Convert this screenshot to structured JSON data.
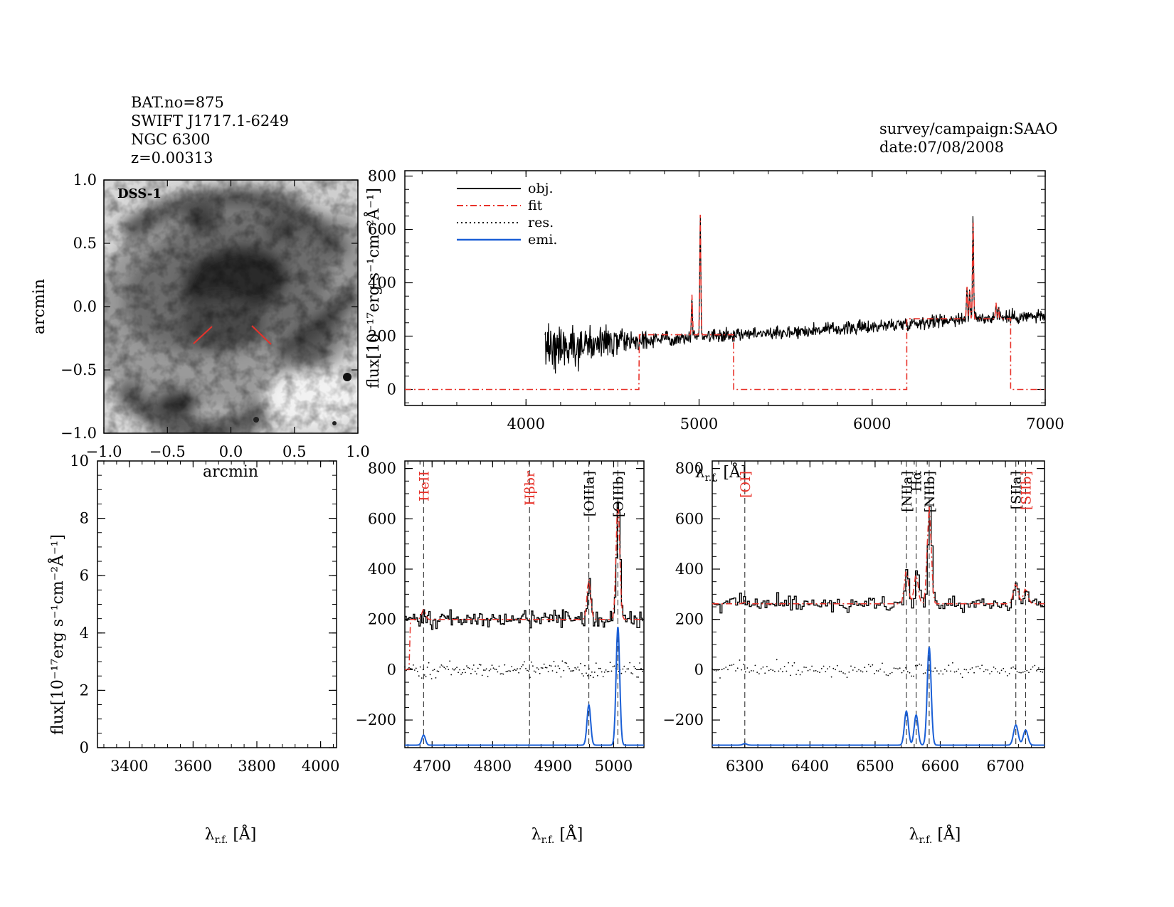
{
  "header": {
    "left_lines": [
      "BAT.no=875",
      "SWIFT J1717.1-6249",
      "NGC 6300",
      "z=0.00313"
    ],
    "right_lines": [
      "survey/campaign:SAAO",
      "date:07/08/2008"
    ]
  },
  "colors": {
    "obj": "#000000",
    "fit": "#e8322a",
    "res": "#000000",
    "emi": "#1a5fd6",
    "slit": "#e8322a"
  },
  "image_panel": {
    "label": "DSS-1",
    "xlabel": "arcmin",
    "ylabel": "arcmin",
    "xlim": [
      -1.0,
      1.0
    ],
    "ylim": [
      -1.0,
      1.0
    ],
    "xticks": [
      "−1.0",
      "−0.5",
      "0.0",
      "0.5",
      "1.0"
    ],
    "yticks": [
      "−1.0",
      "−0.5",
      "0.0",
      "0.5",
      "1.0"
    ]
  },
  "chart_data": [
    {
      "id": "full",
      "type": "line",
      "xlim": [
        3300,
        7000
      ],
      "ylim": [
        -60,
        820
      ],
      "xticks": [
        4000,
        5000,
        6000,
        7000
      ],
      "yticks": [
        0,
        200,
        400,
        600,
        800
      ],
      "xlabel": "λr.f. [Å]",
      "ylabel": "flux[10⁻¹⁷erg s⁻¹cm⁻²Å⁻¹]",
      "legend": {
        "placement": "top-left",
        "entries": [
          "obj.",
          "fit",
          "res.",
          "emi."
        ]
      },
      "obj_range": [
        4110,
        7000
      ],
      "continuum_anchors": [
        [
          4110,
          160
        ],
        [
          4500,
          175
        ],
        [
          5000,
          200
        ],
        [
          5500,
          215
        ],
        [
          6000,
          235
        ],
        [
          6500,
          265
        ],
        [
          7000,
          275
        ]
      ],
      "emission_peaks": [
        [
          4959,
          150
        ],
        [
          5007,
          450
        ],
        [
          6548,
          120
        ],
        [
          6563,
          110
        ],
        [
          6583,
          380
        ],
        [
          6716,
          60
        ],
        [
          6731,
          40
        ]
      ],
      "fit_segments": [
        [
          3300,
          4655,
          0
        ],
        [
          4655,
          5200,
          205
        ],
        [
          5200,
          6200,
          0
        ],
        [
          6200,
          6800,
          265
        ],
        [
          6800,
          7000,
          0
        ]
      ]
    },
    {
      "id": "blank",
      "type": "line",
      "xlim": [
        3300,
        4050
      ],
      "ylim": [
        0,
        10
      ],
      "xticks": [
        3400,
        3600,
        3800,
        4000
      ],
      "yticks": [
        0,
        2,
        4,
        6,
        8,
        10
      ],
      "xlabel": "λr.f. [Å]",
      "ylabel": "flux[10⁻¹⁷erg s⁻¹cm⁻²Å⁻¹]",
      "series": []
    },
    {
      "id": "hbeta",
      "type": "line",
      "xlim": [
        4655,
        5050
      ],
      "ylim": [
        -310,
        830
      ],
      "xticks": [
        4700,
        4800,
        4900,
        5000
      ],
      "yticks": [
        -200,
        0,
        200,
        400,
        600,
        800
      ],
      "xlabel": "λr.f. [Å]",
      "continuum": 200,
      "emission_lines": [
        [
          4686,
          40,
          3
        ],
        [
          4959,
          160,
          3
        ],
        [
          5007,
          470,
          3
        ]
      ],
      "emi_baseline": -300,
      "vlines": [
        {
          "x": 4686,
          "label": "HeII",
          "color": "#e8322a"
        },
        {
          "x": 4861,
          "label": "Hβbr",
          "color": "#e8322a"
        },
        {
          "x": 4959,
          "label": "[OIIIa]",
          "color": "#000000"
        },
        {
          "x": 5007,
          "label": "[OIIIb]",
          "color": "#000000"
        }
      ]
    },
    {
      "id": "halpha",
      "type": "line",
      "xlim": [
        6250,
        6760
      ],
      "ylim": [
        -310,
        830
      ],
      "xticks": [
        6300,
        6400,
        6500,
        6600,
        6700
      ],
      "yticks": [
        -200,
        0,
        200,
        400,
        600,
        800
      ],
      "xlabel": "λr.f. [Å]",
      "continuum": 262,
      "emission_lines": [
        [
          6300,
          6,
          3
        ],
        [
          6548,
          135,
          3
        ],
        [
          6563,
          120,
          3
        ],
        [
          6583,
          390,
          3
        ],
        [
          6716,
          80,
          3.5
        ],
        [
          6731,
          60,
          3.5
        ]
      ],
      "emi_baseline": -300,
      "vlines": [
        {
          "x": 6300,
          "label": "[OI]",
          "color": "#e8322a"
        },
        {
          "x": 6548,
          "label": "[NIIa]",
          "color": "#000000"
        },
        {
          "x": 6563,
          "label": "Hα",
          "color": "#000000"
        },
        {
          "x": 6583,
          "label": "[NIIb]",
          "color": "#000000"
        },
        {
          "x": 6716,
          "label": "[SIIa]",
          "color": "#000000"
        },
        {
          "x": 6731,
          "label": "[SIIb]",
          "color": "#e8322a"
        }
      ]
    }
  ]
}
